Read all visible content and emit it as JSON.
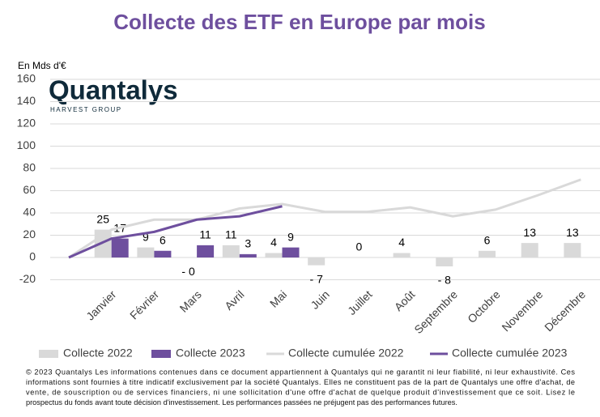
{
  "chart_data": {
    "type": "bar",
    "title": "Collecte des ETF en Europe par mois",
    "y_label": "En Mds d'€",
    "logo": {
      "name": "Quantalys",
      "tagline": "HARVEST GROUP"
    },
    "categories": [
      null,
      "Janvier",
      "Février",
      "Mars",
      "Avril",
      "Mai",
      "Juin",
      "Juillet",
      "Août",
      "Septembre",
      "Octobre",
      "Novembre",
      "Décembre"
    ],
    "series": [
      {
        "name": "Collecte 2022",
        "type": "bar",
        "color": "#d9d9d9",
        "values": [
          null,
          25,
          9,
          -0.2,
          11,
          4,
          -7,
          0,
          4,
          -8,
          6,
          13,
          13
        ],
        "value_labels": [
          null,
          "25",
          "9",
          "- 0",
          "11",
          "4",
          "- 7",
          "0",
          "4",
          "- 8",
          "6",
          "13",
          "13"
        ]
      },
      {
        "name": "Collecte 2023",
        "type": "bar",
        "color": "#6e4f9e",
        "values": [
          null,
          17,
          6,
          11,
          3,
          9,
          null,
          null,
          null,
          null,
          null,
          null,
          null
        ]
      },
      {
        "name": "Collecte cumulée 2022",
        "type": "line",
        "color": "#d9d9d9",
        "values": [
          0,
          25,
          34,
          34,
          44,
          48,
          41,
          41,
          45,
          37,
          43,
          56,
          70
        ]
      },
      {
        "name": "Collecte cumulée 2023",
        "type": "line",
        "color": "#6e4f9e",
        "values": [
          0,
          17,
          23,
          34,
          37,
          46,
          null,
          null,
          null,
          null,
          null,
          null,
          null
        ]
      }
    ],
    "ylim": [
      -20,
      160
    ],
    "yticks": [
      -20,
      0,
      20,
      40,
      60,
      80,
      100,
      120,
      140,
      160
    ],
    "grid": true,
    "legend": "bottom",
    "footer": [
      "© 2023 Quantalys Les informations contenues dans ce document appartiennent à Quantalys qui ne garantit ni leur fiabilité, ni leur exhaustivité. Ces",
      "informations sont fournies à titre indicatif exclusivement par la société Quantalys. Elles ne constituent pas de la part de Quantalys une offre d'achat, de",
      "vente, de souscription ou de services financiers, ni une sollicitation d'une offre d'achat de quelque produit d'investissement que ce soit. Lisez le",
      "prospectus du fonds avant toute décision d'investissement. Les performances passées ne préjugent pas des performances futures."
    ]
  }
}
